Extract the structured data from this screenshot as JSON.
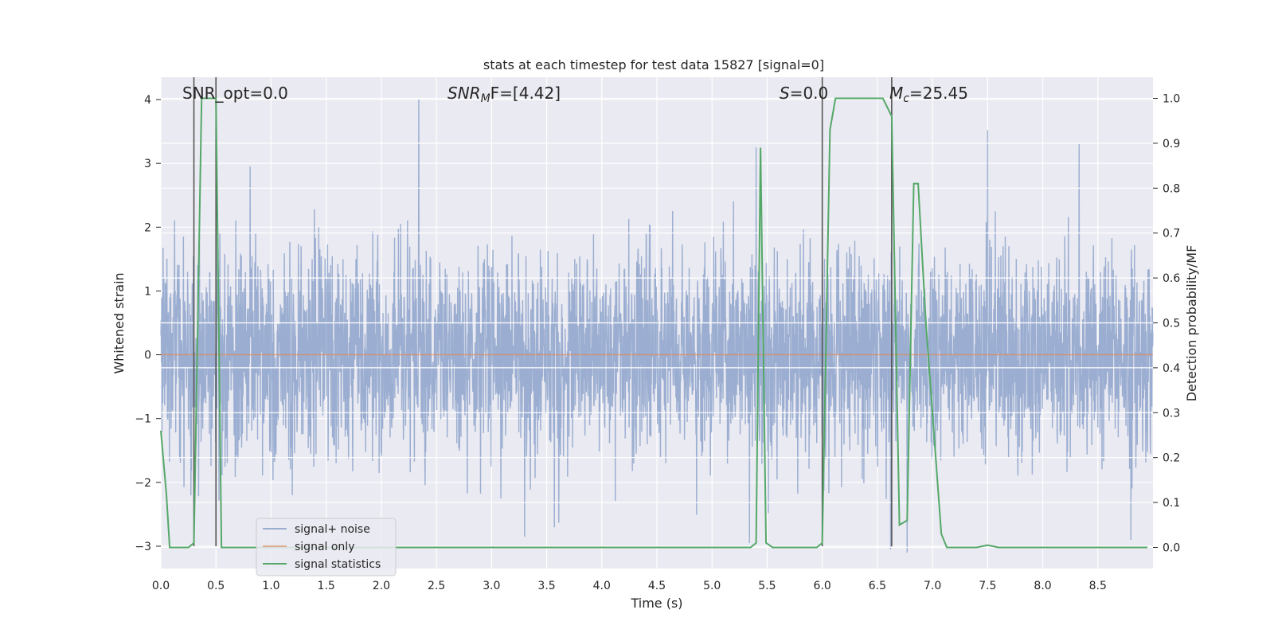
{
  "chart_data": {
    "type": "line",
    "title": "stats at each timestep for test data 15827 [signal=0]",
    "xlabel": "Time (s)",
    "ylabel_left": "Whitened strain",
    "ylabel_right": "Detection probability/MF",
    "xlim": [
      0,
      9
    ],
    "ylim_left": [
      -3.35,
      4.35
    ],
    "ylim_right": [
      -0.047,
      1.047
    ],
    "x_ticks": [
      "0.0",
      "0.5",
      "1.0",
      "1.5",
      "2.0",
      "2.5",
      "3.0",
      "3.5",
      "4.0",
      "4.5",
      "5.0",
      "5.5",
      "6.0",
      "6.5",
      "7.0",
      "7.5",
      "8.0",
      "8.5"
    ],
    "y_ticks_left": [
      "4",
      "3",
      "2",
      "1",
      "0",
      "−1",
      "−2",
      "−3"
    ],
    "y_ticks_right": [
      "1.0",
      "0.9",
      "0.8",
      "0.7",
      "0.6",
      "0.5",
      "0.4",
      "0.3",
      "0.2",
      "0.1",
      "0.0"
    ],
    "annotations": {
      "snr_opt": "SNR_opt=0.0",
      "snr_mf_main": "SNR",
      "snr_mf_sub": "M",
      "snr_mf_tail": "F=[4.42]",
      "s_var": "S",
      "s_val": "=0.0",
      "mc_var": "M",
      "mc_sub": "c",
      "mc_val": "=25.45"
    },
    "vertical_markers_s": [
      0.3,
      0.5,
      6.0,
      6.63
    ],
    "series": [
      {
        "name": "signal+ noise",
        "color": "#4c72b0",
        "axis": "left",
        "description": "whitened noise, approx. zero-mean with std ~0.8, peaks near +4 and -3",
        "noise_std": 0.8,
        "peaks": [
          {
            "x": 2.34,
            "y": 4.0
          },
          {
            "x": 7.5,
            "y": 3.52
          },
          {
            "x": 5.4,
            "y": 3.25
          },
          {
            "x": 0.81,
            "y": 2.95
          },
          {
            "x": 8.33,
            "y": 3.3
          },
          {
            "x": 6.77,
            "y": -3.1
          },
          {
            "x": 6.62,
            "y": -3.05
          },
          {
            "x": 5.34,
            "y": -2.95
          },
          {
            "x": 8.8,
            "y": -2.9
          },
          {
            "x": 3.3,
            "y": -2.85
          }
        ]
      },
      {
        "name": "signal only",
        "color": "#dd8452",
        "axis": "left",
        "x": [
          0,
          9
        ],
        "y": [
          0,
          0
        ]
      },
      {
        "name": "signal statistics",
        "color": "#55a868",
        "axis": "right",
        "x": [
          0.0,
          0.05,
          0.08,
          0.25,
          0.3,
          0.37,
          0.5,
          0.55,
          5.35,
          5.4,
          5.44,
          5.49,
          5.55,
          5.95,
          6.0,
          6.07,
          6.12,
          6.55,
          6.63,
          6.7,
          6.77,
          6.83,
          6.87,
          6.94,
          7.08,
          7.13,
          7.4,
          7.5,
          7.6,
          8.95
        ],
        "y": [
          0.26,
          0.12,
          0.0,
          0.0,
          0.01,
          1.0,
          1.0,
          0.0,
          0.0,
          0.01,
          0.89,
          0.01,
          0.0,
          0.0,
          0.01,
          0.93,
          1.0,
          1.0,
          0.96,
          0.05,
          0.06,
          0.81,
          0.81,
          0.5,
          0.03,
          0.0,
          0.0,
          0.005,
          0.0,
          0.0
        ]
      }
    ],
    "legend": {
      "position": "lower-left",
      "entries": [
        "signal+ noise",
        "signal only",
        "signal statistics"
      ]
    },
    "grid": true,
    "colors": {
      "plot_background": "#eaeaf2",
      "grid": "#ffffff",
      "marker_line": "#555555"
    }
  }
}
